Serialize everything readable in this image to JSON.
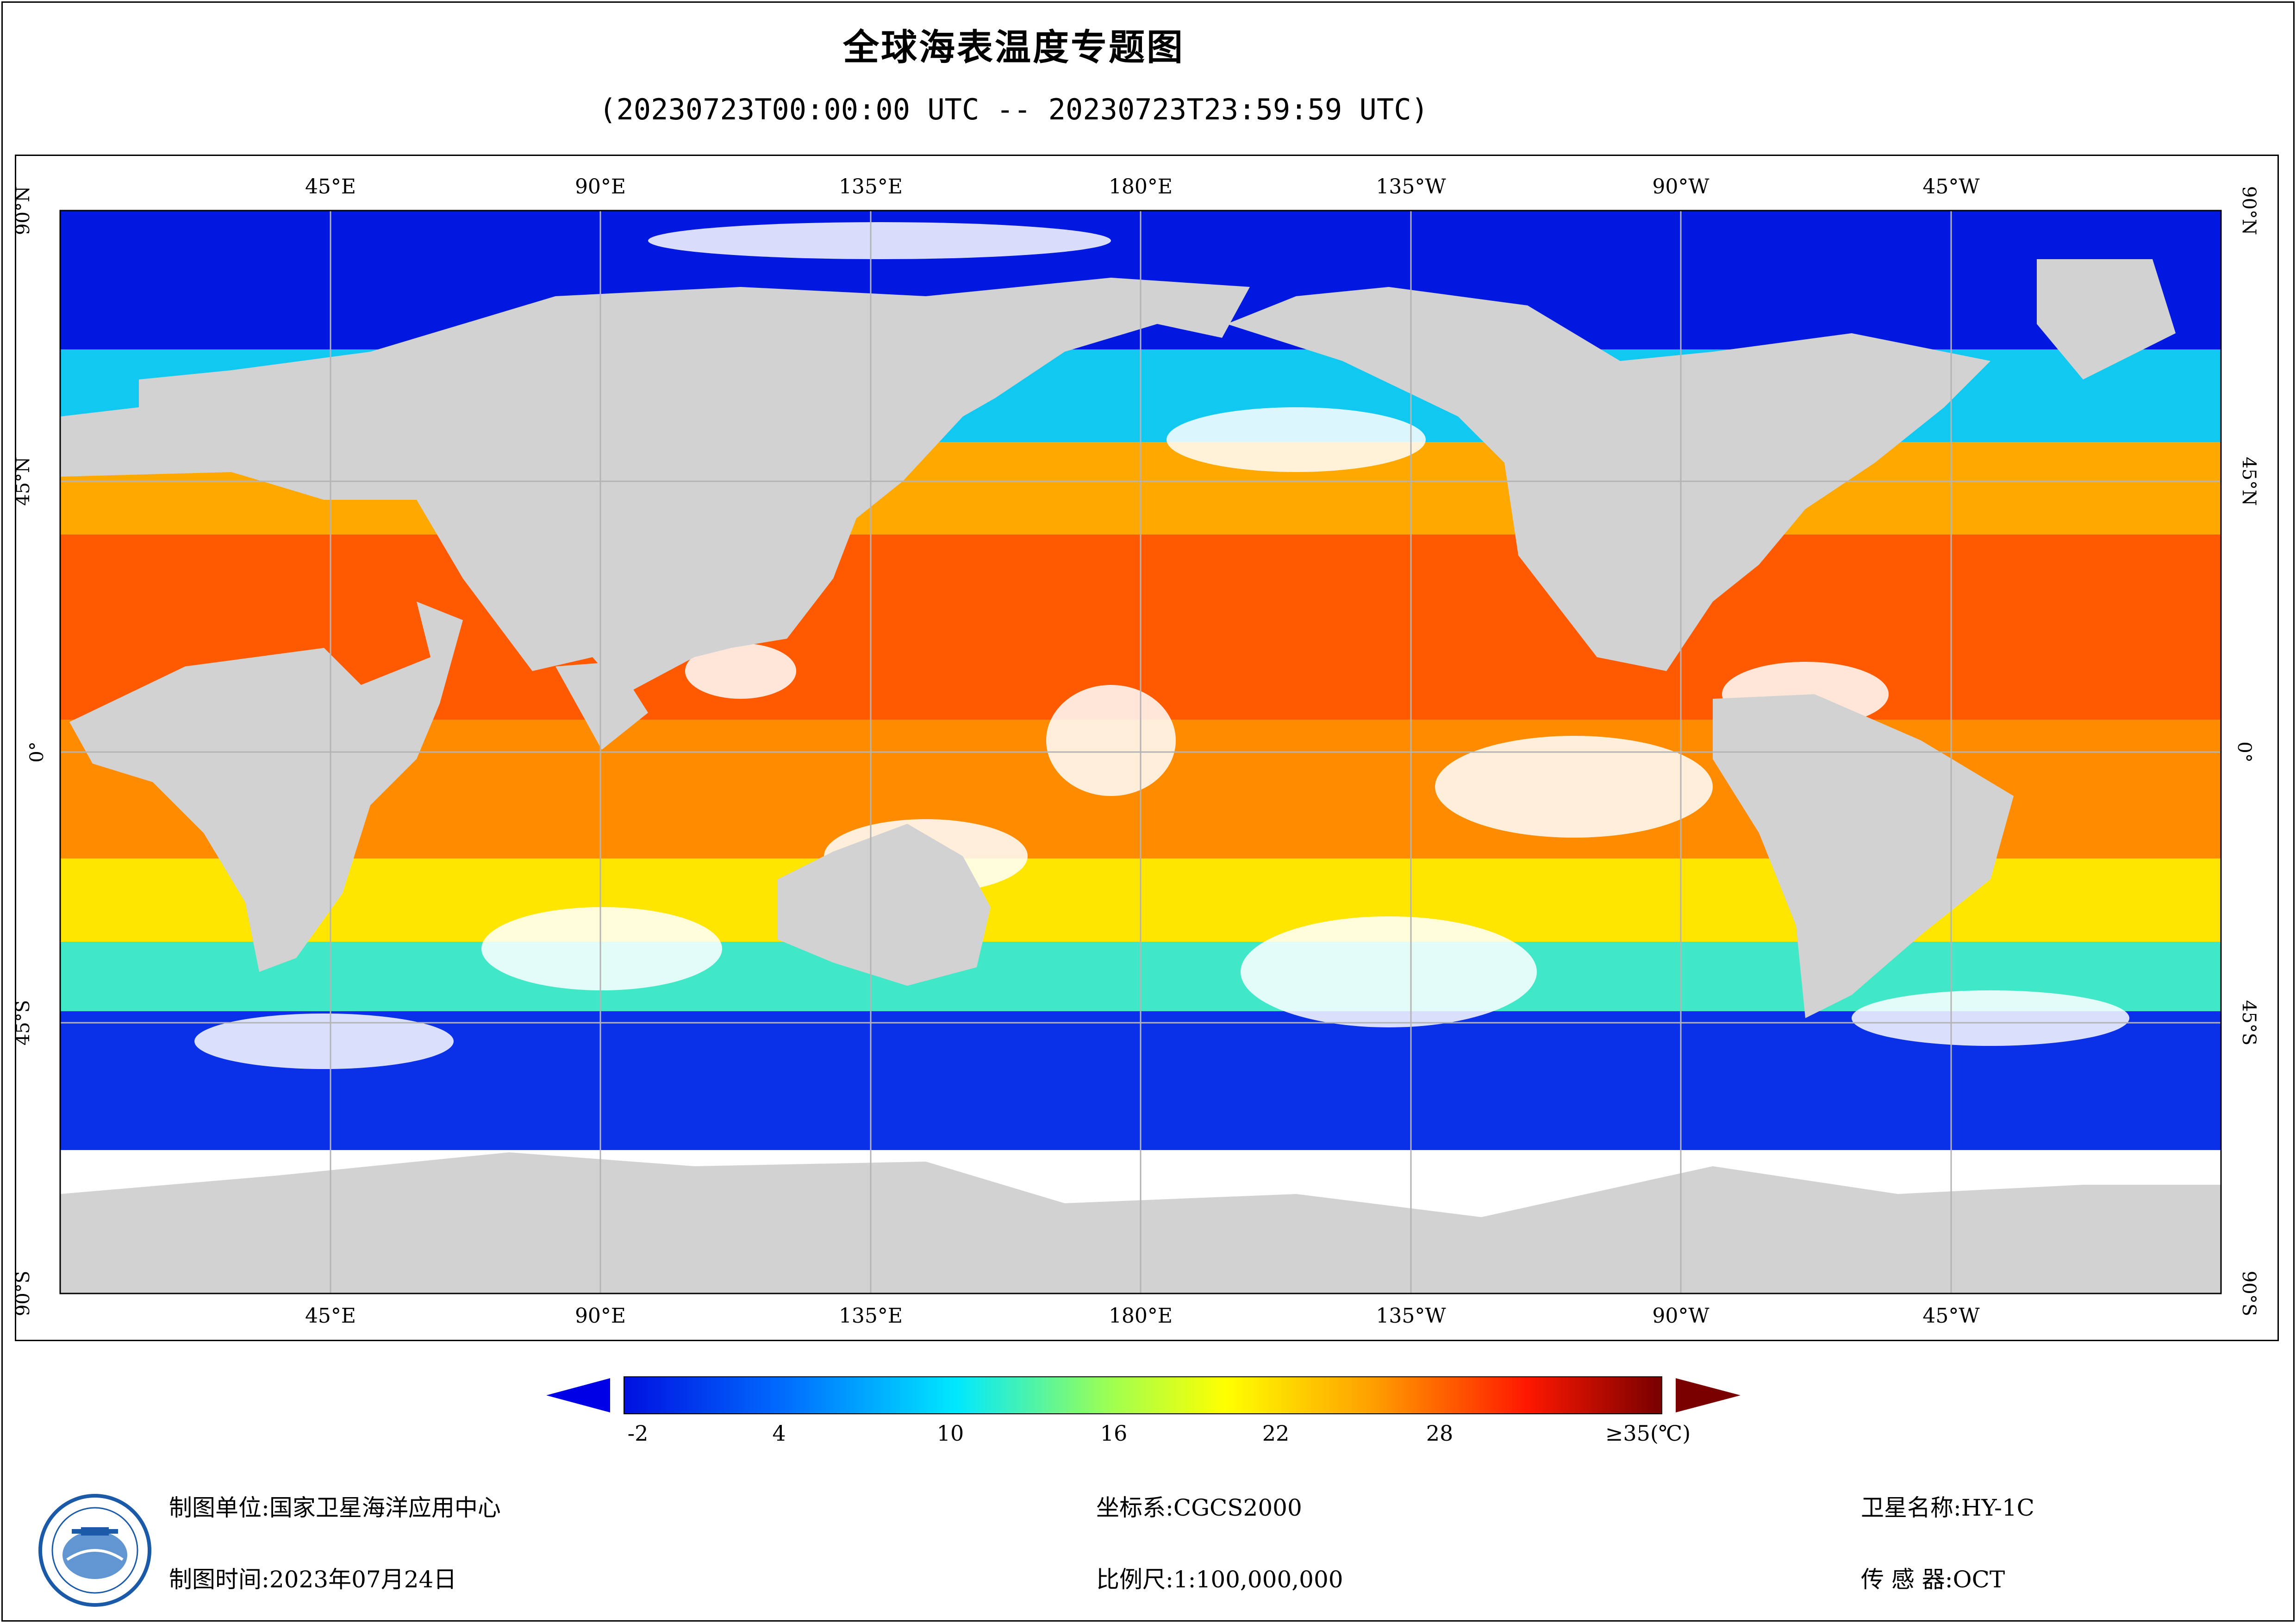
{
  "title": "全球海表温度专题图",
  "subtitle": "(20230723T00:00:00 UTC -- 20230723T23:59:59 UTC)",
  "map": {
    "top_lon_labels": [
      "45°E",
      "90°E",
      "135°E",
      "180°E",
      "135°W",
      "90°W",
      "45°W"
    ],
    "bottom_lon_labels": [
      "45°E",
      "90°E",
      "135°E",
      "180°E",
      "135°W",
      "90°W",
      "45°W"
    ],
    "lat_labels": [
      "90°N",
      "45°N",
      "0°",
      "45°S",
      "90°S"
    ],
    "land_color": "#d2d2d2",
    "cloud_color": "#ffffff"
  },
  "colorbar": {
    "tick_labels": [
      "-2",
      "4",
      "10",
      "16",
      "22",
      "28",
      "≥35(℃)"
    ],
    "min_value": -2,
    "max_value": 35,
    "low_arrow_color": "#0000e6",
    "high_arrow_color": "#7a0000"
  },
  "footer": {
    "unit_label": "制图单位:国家卫星海洋应用中心",
    "time_label": "制图时间:2023年07月24日",
    "crs_label": "坐标系:CGCS2000",
    "scale_label": "比例尺:1:100,000,000",
    "satellite_label": "卫星名称:HY-1C",
    "sensor_label": "传 感 器:OCT"
  }
}
